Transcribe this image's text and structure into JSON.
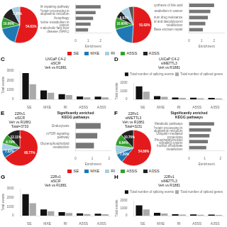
{
  "chart_data": [
    {
      "type": "pie",
      "values": [
        54.61,
        17.0,
        10.06,
        10.95,
        7.38
      ],
      "colors": [
        "#e31a1c",
        "#1f78b4",
        "#33a02c",
        "#222222",
        "#a6cee3"
      ],
      "value_labels": [
        "54.61%",
        null,
        "10.06%",
        null,
        "7.38%"
      ],
      "data_labels": true
    },
    {
      "type": "bar",
      "orientation": "horizontal",
      "categories": [
        "DNA repairing pathway",
        "Protein processing in\nendoplasmic reticulum",
        "Autophagy",
        "Choline metabolism in\ncancer",
        "Non-alcoholic fatty liver\ndisease (NAFL)"
      ],
      "values": [
        2.0,
        1.6,
        1.4,
        1.2,
        1.0
      ],
      "color": "#777777",
      "xlabel": "Enrichment",
      "xlim": [
        0,
        2.8
      ],
      "xticks": [
        0,
        1,
        2
      ],
      "grid": false
    },
    {
      "type": "pie",
      "values": [
        51.02,
        20.0,
        10.6,
        6.61,
        7.5,
        4.27
      ],
      "colors": [
        "#e31a1c",
        "#1f78b4",
        "#33a02c",
        "#222222",
        "#a6cee3",
        "#555555"
      ],
      "value_labels": [
        "51.02%",
        null,
        "10.60%",
        "6.61%",
        null,
        null
      ],
      "data_labels": true
    },
    {
      "type": "bar",
      "orientation": "horizontal",
      "categories": [
        "Biosynthesis of bile acid",
        "Choline metabolism in cancer",
        "Platinum drug resistance",
        "Glycerolipid and diacylglycerol\nmetabolism",
        "Base excision repair"
      ],
      "values": [
        2.0,
        1.7,
        1.5,
        1.3,
        1.1
      ],
      "color": "#777777",
      "xlabel": "Enrichment",
      "xlim": [
        0,
        2.8
      ],
      "xticks": [
        0,
        1,
        2
      ],
      "grid": false
    },
    {
      "type": "legend",
      "series": [
        {
          "name": "SE",
          "color": "#e31a1c"
        },
        {
          "name": "MXE",
          "color": "#1f78b4"
        },
        {
          "name": "RI",
          "color": "#a6cee3"
        },
        {
          "name": "A5SS",
          "color": "#33a02c"
        },
        {
          "name": "A3SS",
          "color": "#222222"
        }
      ]
    },
    {
      "type": "bar",
      "title": "LNCaP:C4-2\nsiSCR\nVeh vs R1881",
      "annotations": [
        "C"
      ],
      "categories": [
        "SE",
        "MXE",
        "RI",
        "A5SS",
        "A3SS"
      ],
      "series": [
        {
          "color": "#111111",
          "values": [
            2800,
            950,
            550,
            300,
            280
          ]
        },
        {
          "color": "#aaaaaa",
          "values": [
            1600,
            700,
            450,
            200,
            200
          ]
        }
      ],
      "ylabel": "Total events",
      "ylim": [
        0,
        3000
      ],
      "yticks": [
        0,
        1000,
        2000,
        3000
      ],
      "grid": false
    },
    {
      "type": "bar",
      "title": "LNCaP:C4-2\nsiMETTL3\nVeh vs R1881",
      "annotations": [
        "D"
      ],
      "categories": [
        "SE",
        "MXE",
        "RI",
        "A5SS",
        "A3SS"
      ],
      "series": [
        {
          "name": "Total number of splicing events",
          "color": "#111111",
          "values": [
            1600,
            400,
            220,
            200,
            180
          ]
        },
        {
          "name": "Total number of spliced genes",
          "color": "#aaaaaa",
          "values": [
            950,
            300,
            170,
            130,
            120
          ]
        }
      ],
      "ylabel": "Total events",
      "ylim": [
        0,
        2000
      ],
      "yticks": [
        0,
        1000,
        2000
      ],
      "grid": false,
      "legend": "upper right"
    },
    {
      "type": "pie",
      "title": "22Rv1\nsiSCR\nVeh vs R1881\nTotal=3733",
      "annotations": [
        "E"
      ],
      "values": [
        65.77,
        7.02,
        6.31,
        8.79,
        12.11
      ],
      "colors": [
        "#e31a1c",
        "#1f78b4",
        "#a6cee3",
        "#33a02c",
        "#222222"
      ],
      "value_labels": [
        "65.77%",
        "7.02%",
        null,
        "8.79%",
        "12.11%"
      ],
      "data_labels": true
    },
    {
      "type": "bar",
      "orientation": "horizontal",
      "title": "Significantly enriched\nKEGG pathways",
      "categories": [
        "Endocytosis",
        "mTOR signaling\npathway",
        "Glycerophospholipid\nmetabolism"
      ],
      "values": [
        1.5,
        1.3,
        1.1
      ],
      "color": "#777777",
      "xlabel": "Enrichment",
      "xlim": [
        0,
        2.1
      ],
      "xticks": [
        0,
        1,
        2
      ],
      "grid": false
    },
    {
      "type": "pie",
      "title": "22Rv1\nsiMETTL3\nVeh vs R1881\nTotal=3231",
      "annotations": [
        "F"
      ],
      "values": [
        54.86,
        7.39,
        7.15,
        9.84,
        10.76
      ],
      "colors": [
        "#e31a1c",
        "#1f78b4",
        "#a6cee3",
        "#33a02c",
        "#222222"
      ],
      "value_labels": [
        "54.86%",
        "7.39%",
        null,
        "9.84%",
        "10.76%"
      ],
      "data_labels": true
    },
    {
      "type": "bar",
      "orientation": "horizontal",
      "title": "Significantly enriched\nKEGG pathways",
      "categories": [
        "Metabolic pathways",
        "Protein processing in\nendoplasmic reticulum",
        "Ubiquitin mediated\nproteolysis",
        "Phosphatidylinositol\nsignaling system",
        "Inositol phosphate\nmetabolism"
      ],
      "values": [
        1.6,
        1.4,
        1.3,
        1.2,
        1.1
      ],
      "color": "#777777",
      "xlabel": "Enrichment",
      "xlim": [
        0,
        2.24
      ],
      "xticks": [
        0,
        1,
        2
      ],
      "grid": false
    },
    {
      "type": "legend",
      "series": [
        {
          "name": "SE",
          "color": "#e31a1c"
        },
        {
          "name": "MXE",
          "color": "#1f78b4"
        },
        {
          "name": "RI",
          "color": "#a6cee3"
        },
        {
          "name": "A5SS",
          "color": "#33a02c"
        },
        {
          "name": "A3SS",
          "color": "#222222"
        }
      ]
    },
    {
      "type": "bar",
      "title": "22Rv1\nsiSCR\nVeh vs R1881",
      "annotations": [
        "G"
      ],
      "categories": [
        "SE",
        "MXE",
        "RI",
        "A5SS",
        "A3SS"
      ],
      "series": [
        {
          "color": "#111111",
          "values": [
            2400,
            700,
            400,
            250,
            220
          ]
        },
        {
          "color": "#aaaaaa",
          "values": [
            1400,
            500,
            300,
            170,
            150
          ]
        }
      ],
      "ylabel": "Total events",
      "ylim": [
        0,
        3000
      ],
      "yticks": [
        0,
        1000,
        2000,
        3000
      ],
      "grid": false
    },
    {
      "type": "bar",
      "title": "22Rv1\nsiMETTL3\nVeh vs R1881",
      "annotations": [
        "H"
      ],
      "categories": [
        "SE",
        "MXE",
        "RI",
        "A5SS",
        "A3SS"
      ],
      "series": [
        {
          "name": "Total number of splicing events",
          "color": "#111111",
          "values": [
            1400,
            380,
            200,
            170,
            150
          ]
        },
        {
          "name": "Total number of spliced genes",
          "color": "#aaaaaa",
          "values": [
            850,
            280,
            150,
            110,
            100
          ]
        }
      ],
      "ylabel": "Total events",
      "ylim": [
        0,
        2000
      ],
      "yticks": [
        0,
        1000,
        2000
      ],
      "grid": false,
      "legend": "upper right"
    }
  ]
}
